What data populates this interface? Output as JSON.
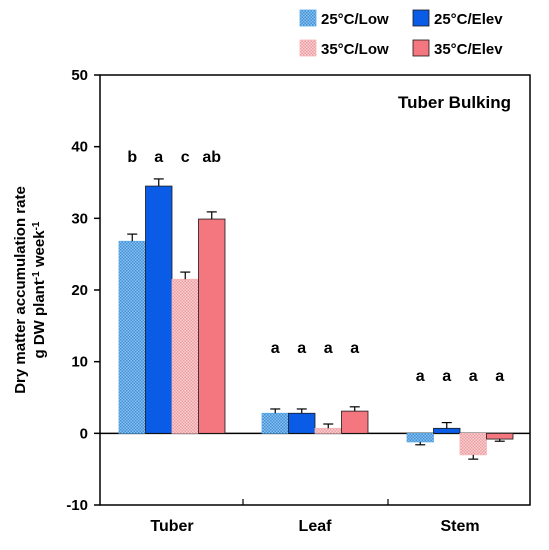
{
  "chart_data": {
    "type": "bar",
    "title": "Tuber Bulking",
    "ylabel_line1": "Dry matter accumulation rate",
    "ylabel_line2_pre": "g DW plant",
    "ylabel_line2_sup1": "-1",
    "ylabel_line2_mid": " week",
    "ylabel_line2_sup2": "-1",
    "ylim": [
      -10,
      50
    ],
    "yticks": [
      -10,
      0,
      10,
      20,
      30,
      40,
      50
    ],
    "categories": [
      "Tuber",
      "Leaf",
      "Stem"
    ],
    "legend_placement": "top-right",
    "series": [
      {
        "name": "25°C/Low",
        "color": "#5aa9e6",
        "pattern": "dots",
        "values": [
          26.8,
          2.8,
          -1.2
        ],
        "errors": [
          1.0,
          0.6,
          0.4
        ]
      },
      {
        "name": "25°C/Elev",
        "color": "#0a5ce6",
        "pattern": "solid",
        "values": [
          34.5,
          2.8,
          0.7
        ],
        "errors": [
          1.0,
          0.6,
          0.8
        ]
      },
      {
        "name": "35°C/Low",
        "color": "#f4b6b8",
        "pattern": "dots",
        "values": [
          21.5,
          0.7,
          -3.0
        ],
        "errors": [
          1.0,
          0.6,
          0.6
        ]
      },
      {
        "name": "35°C/Elev",
        "color": "#f4767e",
        "pattern": "solid",
        "values": [
          29.9,
          3.1,
          -0.8
        ],
        "errors": [
          1.0,
          0.6,
          0.3
        ]
      }
    ],
    "significance": [
      [
        "b",
        "a",
        "c",
        "ab"
      ],
      [
        "a",
        "a",
        "a",
        "a"
      ],
      [
        "a",
        "a",
        "a",
        "a"
      ]
    ],
    "grid": false
  }
}
